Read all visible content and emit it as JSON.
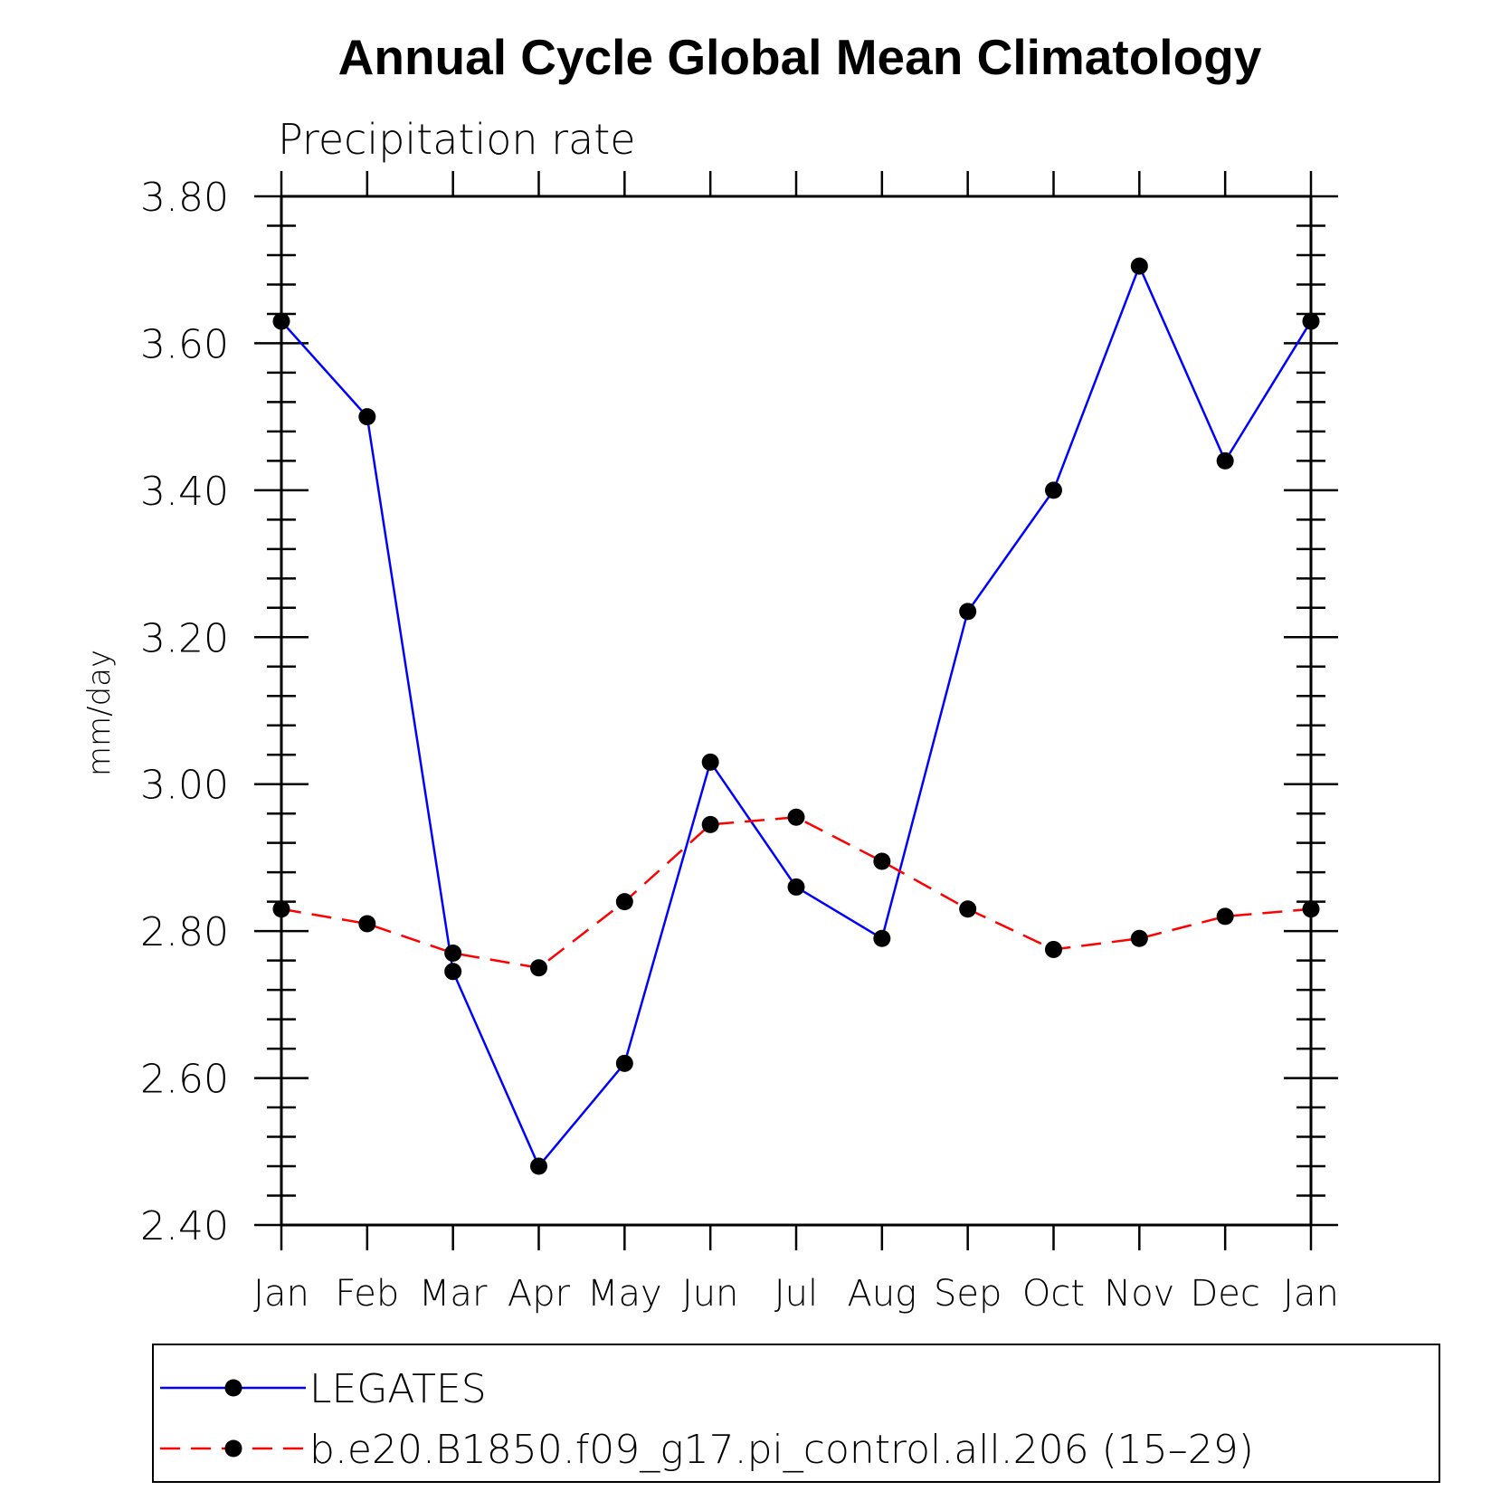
{
  "chart_data": {
    "type": "line",
    "title": "Annual Cycle Global Mean Climatology",
    "subtitle": "Precipitation rate",
    "xlabel": "",
    "ylabel": "mm/day",
    "categories": [
      "Jan",
      "Feb",
      "Mar",
      "Apr",
      "May",
      "Jun",
      "Jul",
      "Aug",
      "Sep",
      "Oct",
      "Nov",
      "Dec",
      "Jan"
    ],
    "ylim": [
      2.4,
      3.8
    ],
    "yticks": [
      "2.40",
      "2.60",
      "2.80",
      "3.00",
      "3.20",
      "3.40",
      "3.60",
      "3.80"
    ],
    "ytick_values": [
      2.4,
      2.6,
      2.8,
      3.0,
      3.2,
      3.4,
      3.6,
      3.8
    ],
    "grid": false,
    "legend_position": "bottom",
    "series": [
      {
        "name": "LEGATES",
        "color": "#0000ff",
        "style": "solid",
        "marker": "dot",
        "values": [
          3.63,
          3.5,
          2.745,
          2.48,
          2.62,
          3.03,
          2.86,
          2.79,
          3.235,
          3.4,
          3.705,
          3.44,
          3.63
        ]
      },
      {
        "name": "b.e20.B1850.f09_g17.pi_control.all.206 (15–29)",
        "color": "#ff0000",
        "style": "dashed",
        "marker": "dot",
        "values": [
          2.83,
          2.81,
          2.77,
          2.75,
          2.84,
          2.945,
          2.955,
          2.895,
          2.83,
          2.775,
          2.79,
          2.82,
          2.83
        ]
      }
    ]
  }
}
